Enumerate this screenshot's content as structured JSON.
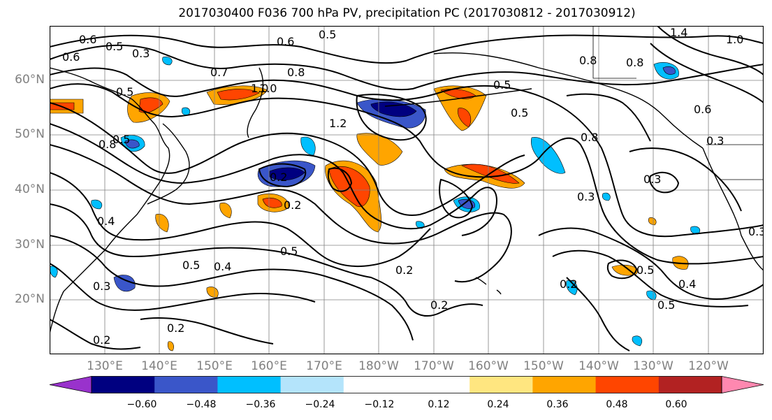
{
  "title": "2017030400 F036 700 hPa PV, precipitation PC (2017030812 - 2017030912)",
  "lat_labels": [
    "60°N",
    "50°N",
    "40°N",
    "30°N",
    "20°N"
  ],
  "lon_labels": [
    "130°E",
    "140°E",
    "150°E",
    "160°E",
    "170°E",
    "180°W",
    "170°W",
    "160°W",
    "150°W",
    "140°W",
    "130°W",
    "120°W"
  ],
  "colorbar": {
    "colors": [
      "#9932cc",
      "#000080",
      "#3a56c9",
      "#00bfff",
      "#b4e4fb",
      "#ffffff",
      "#ffffff",
      "#ffe680",
      "#ffa500",
      "#ff4500",
      "#b22222",
      "#ff88b0"
    ],
    "ticks": [
      "−0.60",
      "−0.48",
      "−0.36",
      "−0.24",
      "−0.12",
      "0.12",
      "0.24",
      "0.36",
      "0.48",
      "0.60"
    ]
  },
  "contour_labels": [
    "0.6",
    "0.5",
    "0.3",
    "0.6",
    "0.5",
    "0.6",
    "1.4",
    "1.0",
    "0.8",
    "0.7",
    "0.8",
    "1.0",
    "1.2",
    "0.5",
    "0.5",
    "0.8",
    "0.8",
    "0.6",
    "0.5",
    "0.3",
    "0.8",
    "0.5",
    "0.3",
    "0.2",
    "0.2",
    "0.5",
    "0.4",
    "0.5",
    "0.4",
    "0.3",
    "0.2",
    "0.2",
    "0.2",
    "0.5",
    "0.4",
    "0.5",
    "0.3",
    "0.2",
    "1.0",
    "0.3",
    "0.2"
  ]
}
